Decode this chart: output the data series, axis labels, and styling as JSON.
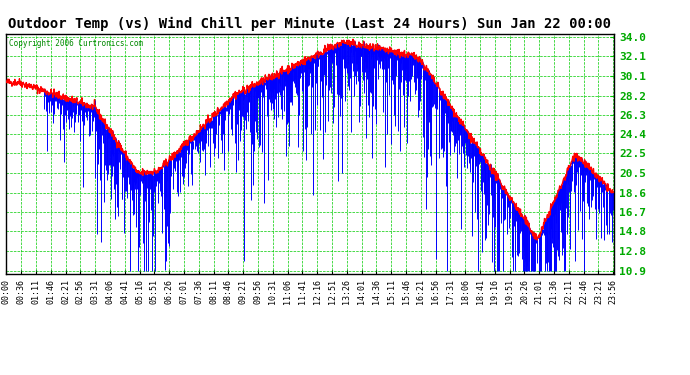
{
  "title": "Outdoor Temp (vs) Wind Chill per Minute (Last 24 Hours) Sun Jan 22 00:00",
  "copyright": "Copyright 2006 Curtronics.com",
  "yticks": [
    34.0,
    32.1,
    30.1,
    28.2,
    26.3,
    24.4,
    22.5,
    20.5,
    18.6,
    16.7,
    14.8,
    12.8,
    10.9
  ],
  "ymin": 10.9,
  "ymax": 34.0,
  "xtick_labels": [
    "00:00",
    "00:36",
    "01:11",
    "01:46",
    "02:21",
    "02:56",
    "03:31",
    "04:06",
    "04:41",
    "05:16",
    "05:51",
    "06:26",
    "07:01",
    "07:36",
    "08:11",
    "08:46",
    "09:21",
    "09:56",
    "10:31",
    "11:06",
    "11:41",
    "12:16",
    "12:51",
    "13:26",
    "14:01",
    "14:36",
    "15:11",
    "15:46",
    "16:21",
    "16:56",
    "17:31",
    "18:06",
    "18:41",
    "19:16",
    "19:51",
    "20:26",
    "21:01",
    "21:36",
    "22:11",
    "22:46",
    "23:21",
    "23:56"
  ],
  "bar_color": "#0000ff",
  "line_color": "#ff0000",
  "grid_color": "#00cc00",
  "bg_color": "#ffffff",
  "outer_bg": "#ffffff",
  "title_color": "#000000",
  "copyright_color": "#008800",
  "ylabel_color": "#00aa00",
  "xlabel_color": "#000000",
  "title_fontsize": 10,
  "ylabel_fontsize": 8,
  "xlabel_fontsize": 6
}
